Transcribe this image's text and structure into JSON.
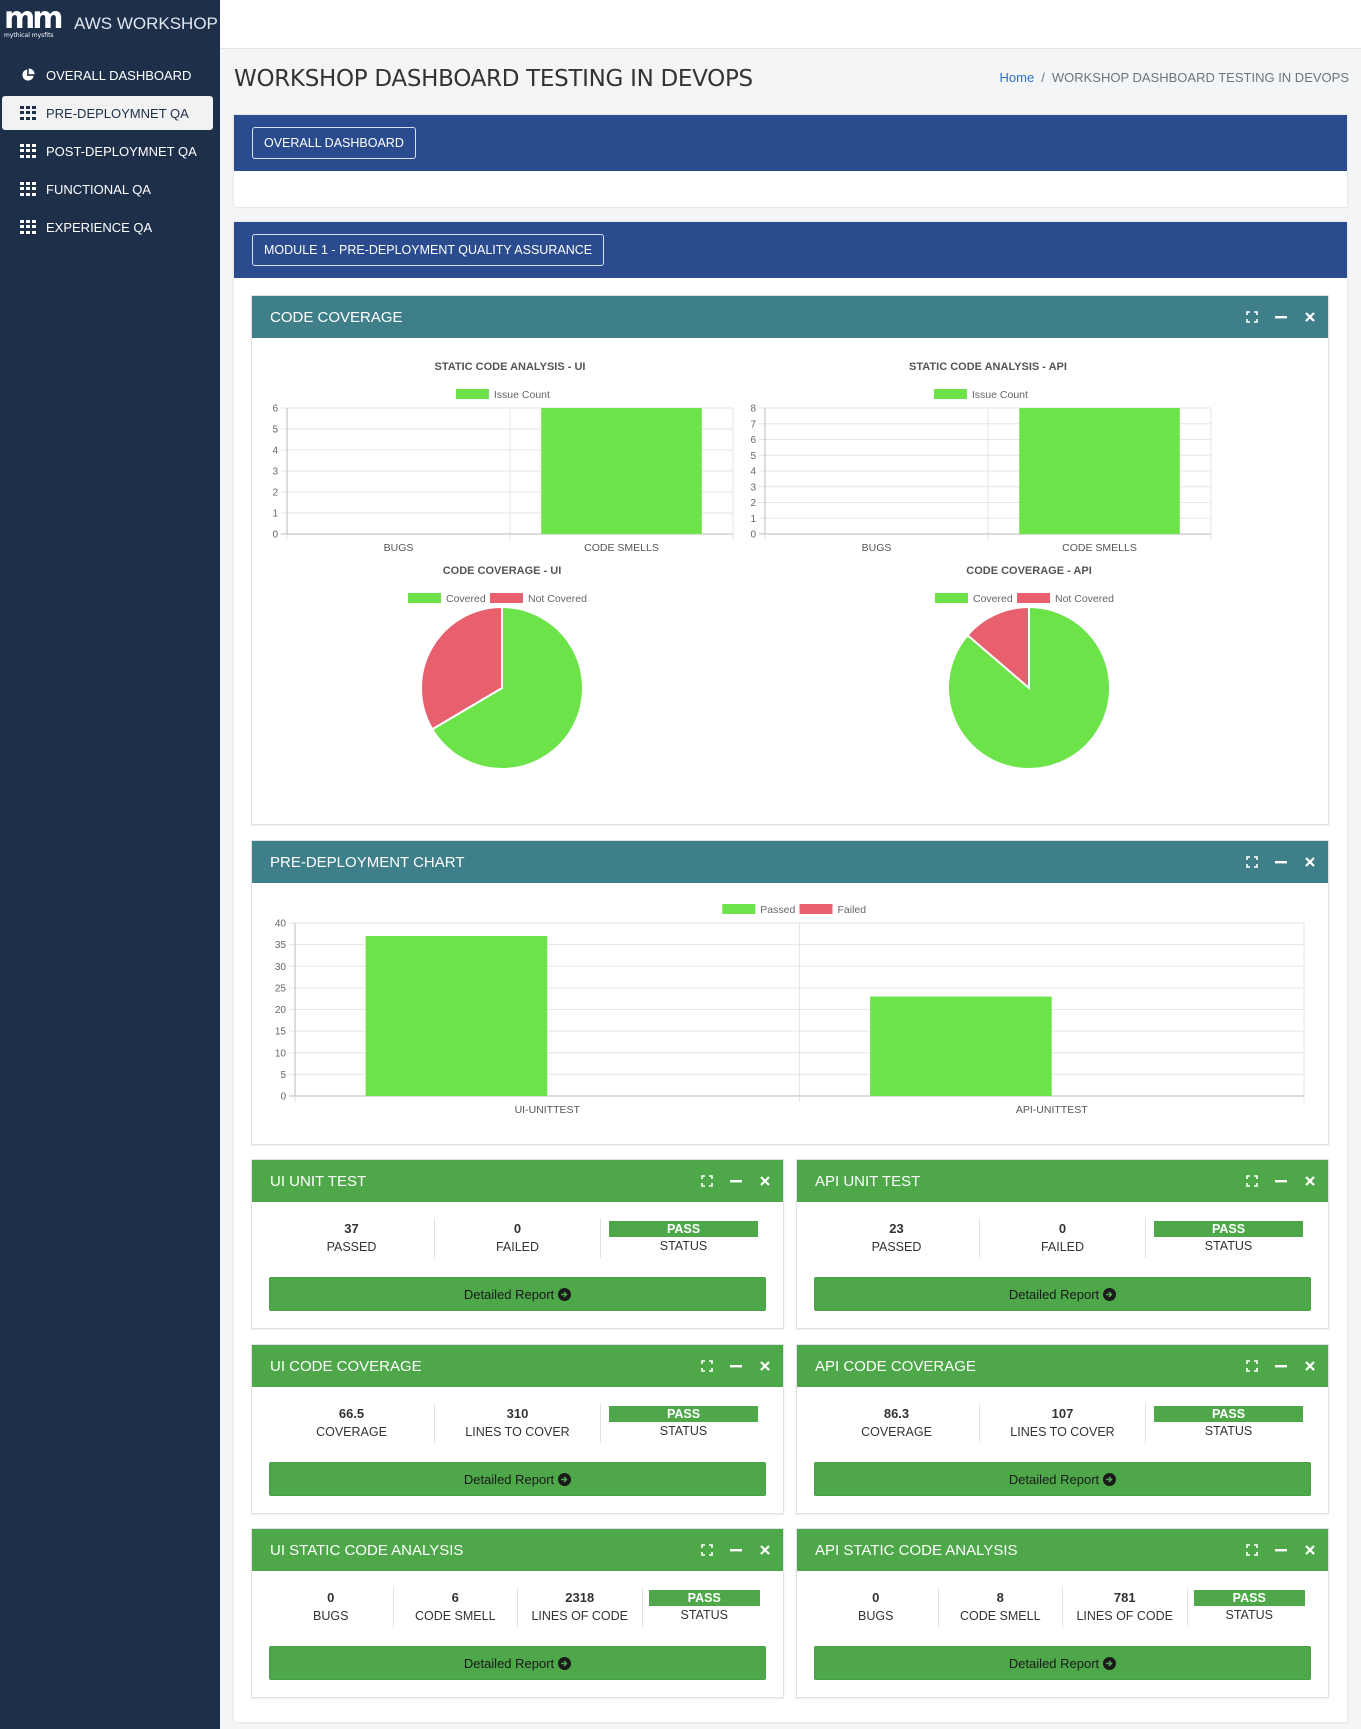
{
  "brand": {
    "logo": "mm",
    "logo_sub": "mythical mysfits",
    "name": "AWS WORKSHOP"
  },
  "nav": [
    {
      "label": "OVERALL DASHBOARD",
      "icon": "pie-chart-icon",
      "active": false
    },
    {
      "label": "PRE-DEPLOYMNET QA",
      "icon": "grid-icon",
      "active": true
    },
    {
      "label": "POST-DEPLOYMNET QA",
      "icon": "grid-icon",
      "active": false
    },
    {
      "label": "FUNCTIONAL QA",
      "icon": "grid-icon",
      "active": false
    },
    {
      "label": "EXPERIENCE QA",
      "icon": "grid-icon",
      "active": false
    }
  ],
  "page": {
    "title": "WORKSHOP DASHBOARD TESTING IN DEVOPS",
    "breadcrumb_home": "Home",
    "breadcrumb_sep": "/",
    "breadcrumb_current": "WORKSHOP DASHBOARD TESTING IN DEVOPS"
  },
  "overall": {
    "button": "OVERALL DASHBOARD"
  },
  "module": {
    "button": "MODULE 1 - PRE-DEPLOYMENT QUALITY ASSURANCE"
  },
  "code_coverage_panel": {
    "title": "CODE COVERAGE"
  },
  "predeploy_panel": {
    "title": "PRE-DEPLOYMENT CHART"
  },
  "colors": {
    "green": "#6de34a",
    "red": "#e8606e",
    "teal": "#3f7f8a",
    "panel_green": "#4ea84a",
    "navy": "#2a4c8e",
    "sidebar": "#1e2f4a"
  },
  "chart_data": [
    {
      "type": "bar",
      "title": "STATIC CODE ANALYSIS - UI",
      "categories": [
        "BUGS",
        "CODE SMELLS"
      ],
      "series": [
        {
          "name": "Issue Count",
          "values": [
            0,
            6
          ]
        }
      ],
      "yticks": [
        "0",
        "1",
        "2",
        "3",
        "4",
        "5",
        "6"
      ],
      "ylim": [
        0,
        6
      ],
      "legend": "top"
    },
    {
      "type": "bar",
      "title": "STATIC CODE ANALYSIS - API",
      "categories": [
        "BUGS",
        "CODE SMELLS"
      ],
      "series": [
        {
          "name": "Issue Count",
          "values": [
            0,
            8
          ]
        }
      ],
      "yticks": [
        "0",
        "1",
        "2",
        "3",
        "4",
        "5",
        "6",
        "7",
        "8"
      ],
      "ylim": [
        0,
        8
      ],
      "legend": "top"
    },
    {
      "type": "pie",
      "title": "CODE COVERAGE - UI",
      "labels": [
        "Covered",
        "Not Covered"
      ],
      "values": [
        66.5,
        33.5
      ],
      "legend": "top"
    },
    {
      "type": "pie",
      "title": "CODE COVERAGE - API",
      "labels": [
        "Covered",
        "Not Covered"
      ],
      "values": [
        86.3,
        13.7
      ],
      "legend": "top"
    },
    {
      "type": "bar",
      "title": "",
      "categories": [
        "UI-UNITTEST",
        "API-UNITTEST"
      ],
      "series": [
        {
          "name": "Passed",
          "values": [
            37,
            23
          ]
        },
        {
          "name": "Failed",
          "values": [
            0,
            0
          ]
        }
      ],
      "yticks": [
        "0",
        "5",
        "10",
        "15",
        "20",
        "25",
        "30",
        "35",
        "40"
      ],
      "ylim": [
        0,
        40
      ],
      "legend": "top"
    }
  ],
  "cards": [
    {
      "title": "UI UNIT TEST",
      "stats": [
        {
          "value": "37",
          "label": "PASSED"
        },
        {
          "value": "0",
          "label": "FAILED"
        }
      ],
      "status": "PASS",
      "status_label": "STATUS",
      "button": "Detailed Report"
    },
    {
      "title": "API UNIT TEST",
      "stats": [
        {
          "value": "23",
          "label": "PASSED"
        },
        {
          "value": "0",
          "label": "FAILED"
        }
      ],
      "status": "PASS",
      "status_label": "STATUS",
      "button": "Detailed Report"
    },
    {
      "title": "UI CODE COVERAGE",
      "stats": [
        {
          "value": "66.5",
          "label": "COVERAGE"
        },
        {
          "value": "310",
          "label": "LINES TO COVER"
        }
      ],
      "status": "PASS",
      "status_label": "STATUS",
      "button": "Detailed Report"
    },
    {
      "title": "API CODE COVERAGE",
      "stats": [
        {
          "value": "86.3",
          "label": "COVERAGE"
        },
        {
          "value": "107",
          "label": "LINES TO COVER"
        }
      ],
      "status": "PASS",
      "status_label": "STATUS",
      "button": "Detailed Report"
    },
    {
      "title": "UI STATIC CODE ANALYSIS",
      "stats": [
        {
          "value": "0",
          "label": "BUGS"
        },
        {
          "value": "6",
          "label": "CODE SMELL"
        },
        {
          "value": "2318",
          "label": "LINES OF CODE"
        }
      ],
      "status": "PASS",
      "status_label": "STATUS",
      "button": "Detailed Report"
    },
    {
      "title": "API STATIC CODE ANALYSIS",
      "stats": [
        {
          "value": "0",
          "label": "BUGS"
        },
        {
          "value": "8",
          "label": "CODE SMELL"
        },
        {
          "value": "781",
          "label": "LINES OF CODE"
        }
      ],
      "status": "PASS",
      "status_label": "STATUS",
      "button": "Detailed Report"
    }
  ]
}
